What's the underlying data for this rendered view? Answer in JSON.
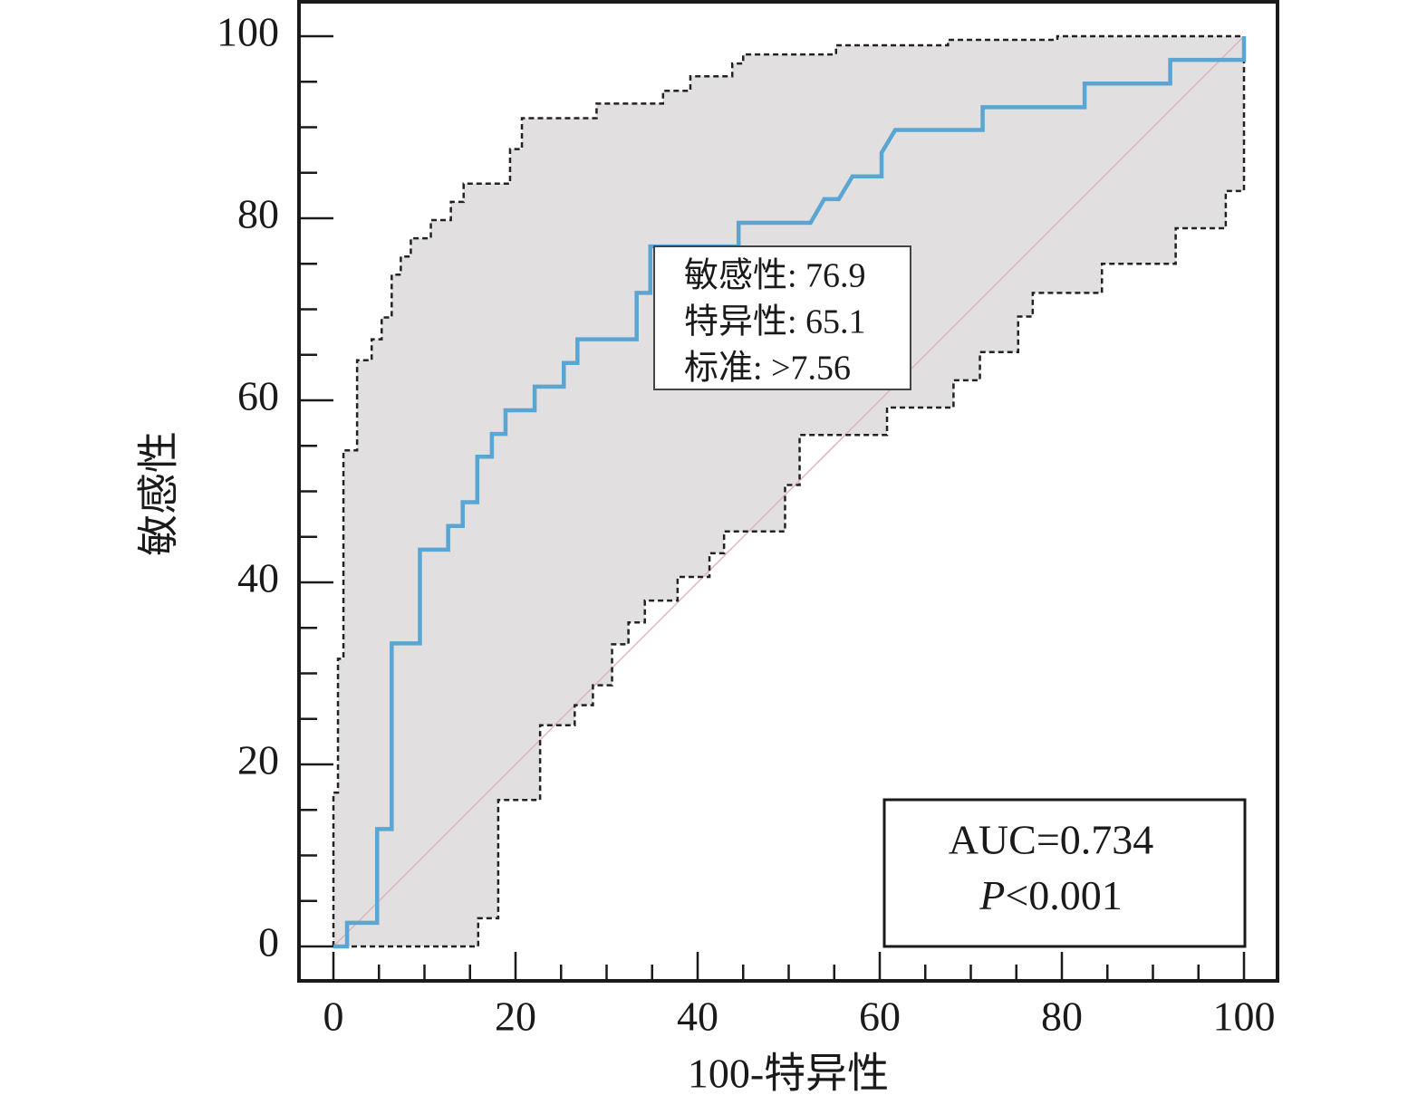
{
  "chart_data": {
    "type": "line",
    "xlabel": "100-特异性",
    "ylabel": "敏感性",
    "xlim": [
      0,
      100
    ],
    "ylim": [
      0,
      100
    ],
    "xticks": [
      0,
      20,
      40,
      60,
      80,
      100
    ],
    "yticks": [
      0,
      20,
      40,
      60,
      80,
      100
    ],
    "x_minor_ticks": [
      5,
      10,
      15,
      25,
      30,
      35,
      45,
      50,
      55,
      65,
      70,
      75,
      85,
      90,
      95
    ],
    "y_minor_ticks": [
      5,
      10,
      15,
      25,
      30,
      35,
      45,
      50,
      55,
      65,
      70,
      75,
      85,
      90,
      95
    ],
    "ci_fill_color": "#e1dfdf",
    "reference_line": {
      "x": [
        0,
        100
      ],
      "y": [
        0,
        100
      ],
      "color": "#dcb4c0"
    },
    "series": [
      {
        "role": "roc",
        "color": "#5aa5d2",
        "x": [
          0,
          1.5,
          1.5,
          4.8,
          4.8,
          6.4,
          6.4,
          9.5,
          9.5,
          12.6,
          12.6,
          14.2,
          14.2,
          15.8,
          15.8,
          17.4,
          17.4,
          18.9,
          18.9,
          22.1,
          22.1,
          25.3,
          25.3,
          26.8,
          26.8,
          33.3,
          33.3,
          34.8,
          34.8,
          44.5,
          44.5,
          52.4,
          53.9,
          55.5,
          57.0,
          60.2,
          60.2,
          61.7,
          71.3,
          71.3,
          82.5,
          82.5,
          91.9,
          91.9,
          100,
          100
        ],
        "y": [
          0,
          0,
          2.6,
          2.6,
          12.9,
          12.9,
          33.3,
          33.3,
          43.6,
          43.6,
          46.2,
          46.2,
          48.8,
          48.8,
          53.8,
          53.8,
          56.3,
          56.3,
          58.9,
          58.9,
          61.5,
          61.5,
          64.1,
          64.1,
          66.7,
          66.7,
          71.8,
          71.8,
          76.9,
          76.9,
          79.5,
          79.5,
          82.1,
          82.1,
          84.6,
          84.6,
          87.2,
          89.7,
          89.7,
          92.2,
          92.2,
          94.8,
          94.8,
          97.4,
          97.4,
          100
        ]
      },
      {
        "role": "upper_ci",
        "color": "#222222",
        "x": [
          0,
          0,
          0.5,
          0.5,
          1.1,
          1.1,
          2.6,
          2.6,
          4.2,
          4.2,
          5.3,
          5.3,
          6.4,
          6.4,
          7.4,
          7.4,
          8.5,
          8.5,
          10.7,
          10.7,
          12.9,
          12.9,
          14.3,
          14.3,
          19.4,
          19.4,
          20.7,
          20.7,
          28.9,
          28.9,
          36.2,
          36.2,
          39.2,
          39.2,
          43.8,
          43.8,
          45.0,
          45.0,
          55.2,
          55.2,
          67.5,
          67.5,
          79.5,
          79.5,
          100
        ],
        "y": [
          0,
          16.9,
          16.9,
          31.6,
          31.6,
          54.5,
          54.5,
          64.4,
          64.4,
          66.7,
          66.7,
          69.1,
          69.1,
          73.8,
          73.8,
          75.8,
          75.8,
          77.8,
          77.8,
          79.8,
          79.8,
          81.8,
          81.8,
          83.8,
          83.8,
          87.6,
          87.6,
          91.0,
          91.0,
          92.6,
          92.6,
          94.0,
          94.0,
          95.6,
          95.6,
          97.0,
          97.0,
          98.0,
          98.0,
          99.0,
          99.0,
          99.6,
          99.6,
          100,
          100
        ]
      },
      {
        "role": "lower_ci",
        "color": "#222222",
        "x": [
          0,
          15.9,
          15.9,
          18.1,
          18.1,
          22.7,
          22.7,
          26.5,
          26.5,
          28.5,
          28.5,
          30.6,
          30.6,
          32.4,
          32.4,
          34.2,
          34.2,
          37.8,
          37.8,
          41.3,
          41.3,
          42.9,
          42.9,
          49.6,
          49.6,
          51.2,
          51.2,
          60.8,
          60.8,
          68.1,
          68.1,
          71.0,
          71.0,
          75.2,
          75.2,
          76.8,
          76.8,
          84.4,
          84.4,
          92.5,
          92.5,
          98.0,
          98.0,
          100,
          100
        ],
        "y": [
          0,
          0,
          3.1,
          3.1,
          16.1,
          16.1,
          24.3,
          24.3,
          26.5,
          26.5,
          28.7,
          28.7,
          33.2,
          33.2,
          35.6,
          35.6,
          38.0,
          38.0,
          40.6,
          40.6,
          43.2,
          43.2,
          45.6,
          45.6,
          50.7,
          50.7,
          56.2,
          56.2,
          59.2,
          59.2,
          62.2,
          62.2,
          65.3,
          65.3,
          69.2,
          69.2,
          71.8,
          71.8,
          75.0,
          75.0,
          78.9,
          78.9,
          83.0,
          83.0,
          100
        ]
      }
    ],
    "cutoff_box": {
      "lines": [
        "敏感性: 76.9",
        "特异性: 65.1",
        "标准: >7.56"
      ]
    },
    "auc_box": {
      "auc": "AUC=0.734",
      "p_symbol": "P",
      "p_value": "<0.001"
    }
  }
}
